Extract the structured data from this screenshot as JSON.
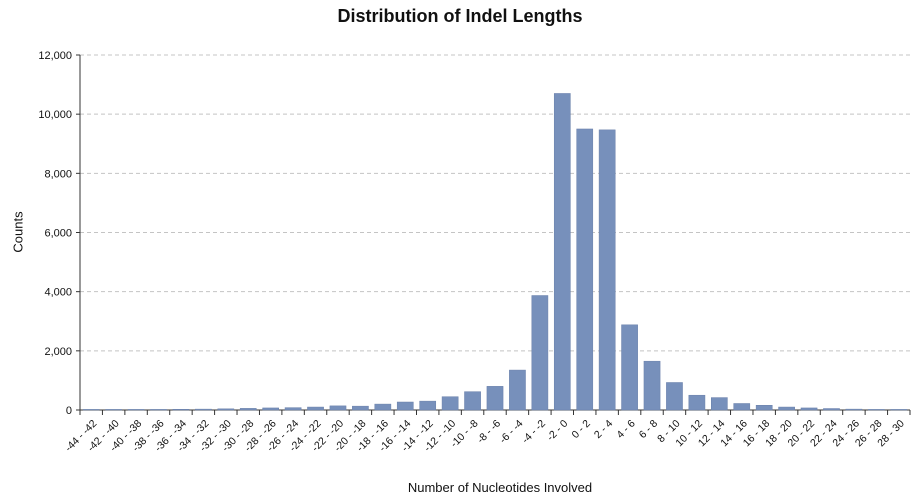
{
  "chart_data": {
    "type": "bar",
    "title": "Distribution of Indel Lengths",
    "xlabel": "Number of Nucleotides Involved",
    "ylabel": "Counts",
    "ylim": [
      0,
      12000
    ],
    "yticks": [
      "0",
      "2,000",
      "4,000",
      "6,000",
      "8,000",
      "10,000",
      "12,000"
    ],
    "grid": true,
    "bar_color": "#7790bb",
    "categories": [
      "-44 - -42",
      "-42 - -40",
      "-40 - -38",
      "-38 - -36",
      "-36 - -34",
      "-34 - -32",
      "-32 - -30",
      "-30 - -28",
      "-28 - -26",
      "-26 - -24",
      "-24 - -22",
      "-22 - -20",
      "-20 - -18",
      "-18 - -16",
      "-16 - -14",
      "-14 - -12",
      "-12 - -10",
      "-10 - -8",
      "-8 - -6",
      "-6 - -4",
      "-4 - -2",
      "-2 - 0",
      "0 - 2",
      "2 - 4",
      "4 - 6",
      "6 - 8",
      "8 - 10",
      "10 - 12",
      "12 - 14",
      "14 - 16",
      "16 - 18",
      "18 - 20",
      "20 - 22",
      "22 - 24",
      "24 - 26",
      "26 - 28",
      "28 - 30"
    ],
    "values": [
      5,
      10,
      15,
      20,
      25,
      30,
      40,
      55,
      70,
      80,
      100,
      140,
      130,
      200,
      270,
      300,
      450,
      620,
      800,
      1350,
      3870,
      10700,
      9500,
      9470,
      2880,
      1650,
      930,
      500,
      420,
      220,
      160,
      100,
      70,
      50,
      30,
      20,
      10
    ]
  }
}
